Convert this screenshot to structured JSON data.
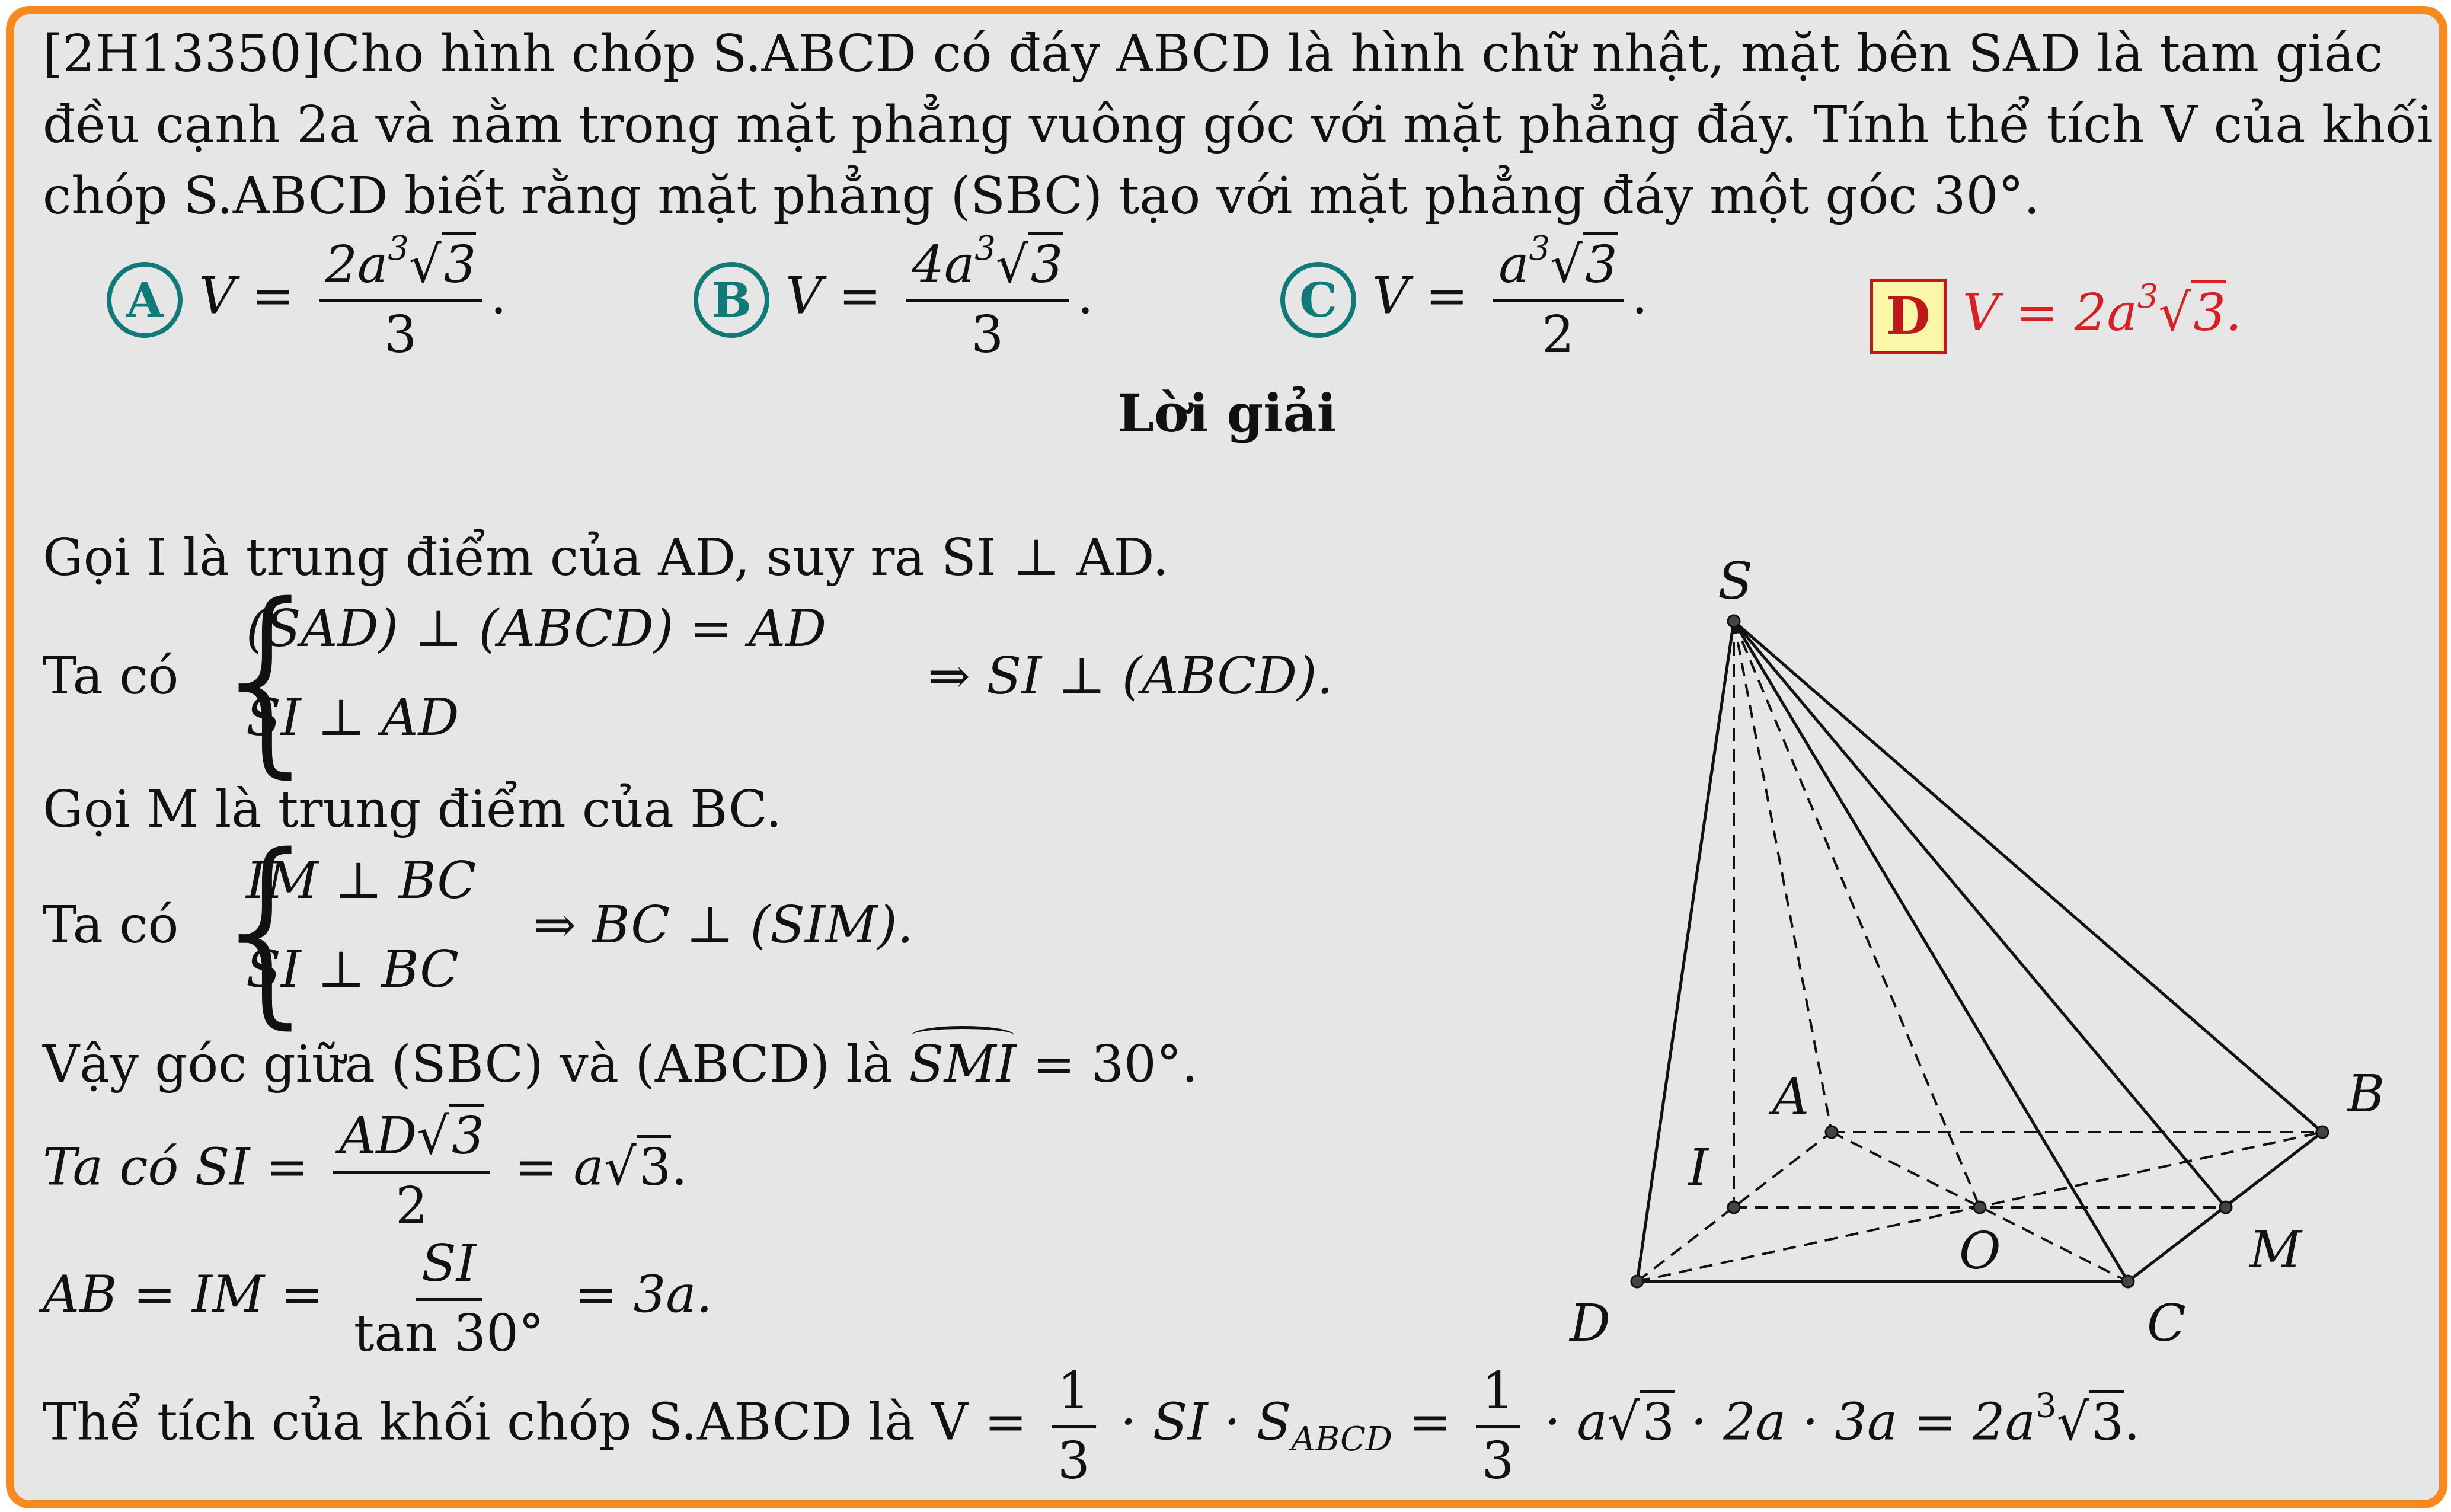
{
  "problem": {
    "line1": "[2H13350]Cho hình chóp S.ABCD có đáy ABCD là hình chữ nhật, mặt bên SAD là tam giác",
    "line2": "đều cạnh 2a và nằm trong mặt phẳng vuông góc với mặt phẳng đáy. Tính thể tích V của khối",
    "line3": "chóp S.ABCD biết rằng mặt phẳng (SBC) tạo với mặt phẳng đáy một góc 30°."
  },
  "options": [
    {
      "letter": "A",
      "lhs": "V =",
      "num": "2a",
      "num_exp": "3",
      "num_rad": "3",
      "den": "3",
      "tail": "."
    },
    {
      "letter": "B",
      "lhs": "V =",
      "num": "4a",
      "num_exp": "3",
      "num_rad": "3",
      "den": "3",
      "tail": "."
    },
    {
      "letter": "C",
      "lhs": "V =",
      "num": "a",
      "num_exp": "3",
      "num_rad": "3",
      "den": "2",
      "tail": "."
    },
    {
      "letter": "D",
      "expr": "V = 2a",
      "exp": "3",
      "rad": "3",
      "tail": "."
    }
  ],
  "solution_title": "Lời giải",
  "solution": {
    "l1": "Gọi I là trung điểm của AD, suy ra SI ⊥ AD.",
    "taco": "Ta có",
    "s1a": "(SAD) ⊥ (ABCD) = AD",
    "s1b": "SI ⊥ AD",
    "s1r": "⇒ SI ⊥ (ABCD).",
    "l3": "Gọi M là trung điểm của BC.",
    "s2a": "IM ⊥ BC",
    "s2b": "SI ⊥ BC",
    "s2r": "⇒ BC ⊥ (SIM).",
    "l5_pre": "Vậy góc giữa (SBC) và (ABCD) là",
    "l5_angle": "SMI",
    "l5_post": "= 30°.",
    "l6_pre": "Ta có SI =",
    "l6_num": "AD",
    "l6_rad": "3",
    "l6_den": "2",
    "l6_post": "= a",
    "l6_rad2": "3",
    "l6_end": ".",
    "l7_pre": "AB = IM =",
    "l7_num": "SI",
    "l7_den": "tan 30°",
    "l7_post": "= 3a.",
    "l8_pre": "Thể tích của khối chóp S.ABCD là V =",
    "l8_f1n": "1",
    "l8_f1d": "3",
    "l8_mid": "· SI · S",
    "l8_sub": "ABCD",
    "l8_eq": "=",
    "l8_f2n": "1",
    "l8_f2d": "3",
    "l8_post": "· a",
    "l8_rad": "3",
    "l8_post2": "· 2a · 3a = 2a",
    "l8_exp": "3",
    "l8_rad2": "3",
    "l8_end": "."
  },
  "figure_labels": {
    "S": "S",
    "A": "A",
    "B": "B",
    "C": "C",
    "D": "D",
    "I": "I",
    "O": "O",
    "M": "M"
  },
  "colors": {
    "border": "#f7891f",
    "background": "#e6e6e6",
    "option_teal": "#0f7a77",
    "answer_red": "#d81f21",
    "answer_box": "#fbf7a8"
  }
}
